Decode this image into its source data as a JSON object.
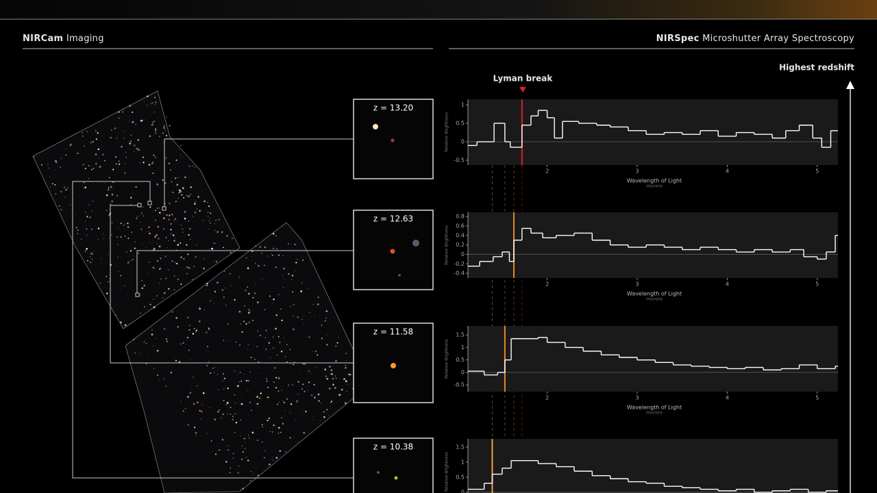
{
  "header": {
    "left": {
      "bold": "NIRCam",
      "rest": "Imaging"
    },
    "right": {
      "bold": "NIRSpec",
      "rest": "Microshutter Array Spectroscopy"
    }
  },
  "lyman_break_label": "Lyman break",
  "redshift_arrow_label": "Highest redshift",
  "cutouts": [
    {
      "label": "z = 13.20"
    },
    {
      "label": "z = 12.63"
    },
    {
      "label": "z = 11.58"
    },
    {
      "label": "z = 10.38"
    }
  ],
  "chart_data": [
    {
      "type": "step",
      "xlabel": "Wavelength of Light",
      "xunit": "microns",
      "ylabel": "Relative Brightness",
      "color": "#ffffff",
      "break_x": 1.72,
      "break_color": "#e0202a",
      "xlim": [
        1.12,
        5.23
      ],
      "xticks": [
        2,
        3,
        4,
        5
      ],
      "ylim": [
        -0.63,
        1.15
      ],
      "yticks": [
        1,
        0.5,
        0,
        -0.5
      ],
      "x": [
        1.12,
        1.22,
        1.41,
        1.53,
        1.59,
        1.72,
        1.82,
        1.9,
        2.0,
        2.08,
        2.17,
        2.35,
        2.55,
        2.7,
        2.9,
        3.1,
        3.3,
        3.5,
        3.7,
        3.9,
        4.1,
        4.3,
        4.5,
        4.65,
        4.8,
        4.95,
        5.05,
        5.15
      ],
      "values": [
        -0.1,
        0.0,
        0.5,
        0.0,
        -0.15,
        0.45,
        0.7,
        0.85,
        0.65,
        0.1,
        0.55,
        0.5,
        0.45,
        0.4,
        0.3,
        0.2,
        0.25,
        0.2,
        0.3,
        0.15,
        0.25,
        0.2,
        0.1,
        0.3,
        0.45,
        0.1,
        -0.15,
        0.3
      ]
    },
    {
      "type": "step",
      "xlabel": "Wavelength of Light",
      "xunit": "microns",
      "ylabel": "Relative Brightness",
      "color": "#ffffff",
      "break_x": 1.63,
      "break_color": "#e8892c",
      "xlim": [
        1.12,
        5.23
      ],
      "xticks": [
        2,
        3,
        4,
        5
      ],
      "ylim": [
        -0.5,
        0.89
      ],
      "yticks": [
        0.8,
        0.6,
        0.4,
        0.2,
        0,
        -0.2,
        -0.4
      ],
      "x": [
        1.12,
        1.25,
        1.4,
        1.5,
        1.58,
        1.63,
        1.72,
        1.82,
        1.95,
        2.1,
        2.3,
        2.5,
        2.7,
        2.9,
        3.1,
        3.3,
        3.5,
        3.7,
        3.9,
        4.1,
        4.3,
        4.5,
        4.7,
        4.85,
        5.0,
        5.1,
        5.2
      ],
      "values": [
        -0.25,
        -0.15,
        -0.05,
        0.05,
        -0.15,
        0.3,
        0.55,
        0.45,
        0.35,
        0.4,
        0.45,
        0.3,
        0.2,
        0.15,
        0.2,
        0.15,
        0.1,
        0.15,
        0.1,
        0.05,
        0.1,
        0.05,
        0.1,
        -0.05,
        -0.1,
        0.05,
        0.4
      ]
    },
    {
      "type": "step",
      "xlabel": "Wavelength of Light",
      "xunit": "microns",
      "ylabel": "Relative Brightness",
      "color": "#ffffff",
      "break_x": 1.53,
      "break_color": "#e8892c",
      "xlim": [
        1.12,
        5.23
      ],
      "xticks": [
        2,
        3,
        4,
        5
      ],
      "ylim": [
        -0.77,
        1.86
      ],
      "yticks": [
        1.5,
        1,
        0.5,
        0,
        -0.5
      ],
      "x": [
        1.12,
        1.3,
        1.45,
        1.53,
        1.6,
        1.9,
        2.0,
        2.2,
        2.4,
        2.6,
        2.8,
        3.0,
        3.2,
        3.4,
        3.6,
        3.8,
        4.0,
        4.2,
        4.4,
        4.6,
        4.8,
        5.0,
        5.2
      ],
      "values": [
        0.05,
        -0.1,
        0.0,
        0.5,
        1.35,
        1.4,
        1.2,
        1.0,
        0.85,
        0.7,
        0.6,
        0.5,
        0.4,
        0.3,
        0.25,
        0.2,
        0.15,
        0.2,
        0.1,
        0.15,
        0.3,
        0.15,
        0.25
      ]
    },
    {
      "type": "step",
      "ylabel": "Relative Brightness",
      "color": "#ffffff",
      "break_x": 1.39,
      "break_color": "#f0a040",
      "xlim": [
        1.12,
        5.23
      ],
      "ylim": [
        -0.41,
        1.77
      ],
      "yticks": [
        1.5,
        1,
        0.5,
        0
      ],
      "x": [
        1.12,
        1.3,
        1.39,
        1.5,
        1.6,
        1.9,
        2.1,
        2.3,
        2.5,
        2.7,
        2.9,
        3.1,
        3.3,
        3.5,
        3.7,
        3.9,
        4.1,
        4.3,
        4.5,
        4.7,
        4.9,
        5.1
      ],
      "values": [
        0.1,
        0.3,
        0.6,
        0.8,
        1.05,
        0.95,
        0.85,
        0.7,
        0.55,
        0.45,
        0.35,
        0.3,
        0.2,
        0.15,
        0.1,
        0.05,
        0.1,
        0.0,
        0.05,
        0.1,
        0.0,
        0.05
      ]
    }
  ]
}
